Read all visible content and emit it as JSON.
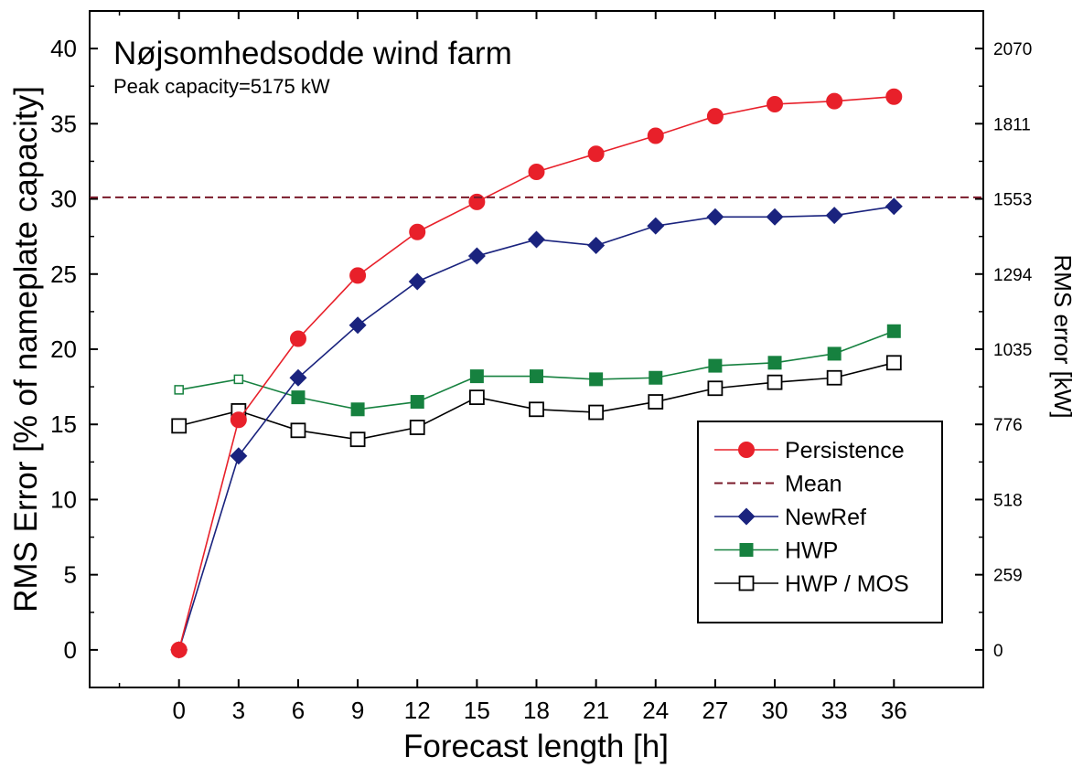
{
  "chart_data": {
    "type": "line",
    "title": "Nøjsomhedsodde wind farm",
    "subtitle": "Peak capacity=5175 kW",
    "xlabel": "Forecast length [h]",
    "ylabel": "RMS Error [% of nameplate capacity]",
    "y2label": "RMS error [kW]",
    "xlim": [
      -4.5,
      40.5
    ],
    "ylim": [
      -2.5,
      42.5
    ],
    "x_ticks": [
      0,
      3,
      6,
      9,
      12,
      15,
      18,
      21,
      24,
      27,
      30,
      33,
      36
    ],
    "y_ticks": [
      0,
      5,
      10,
      15,
      20,
      25,
      30,
      35,
      40
    ],
    "y2_ticks": [
      {
        "value": 0,
        "label": "0"
      },
      {
        "value": 5,
        "label": "259"
      },
      {
        "value": 10,
        "label": "518"
      },
      {
        "value": 15,
        "label": "776"
      },
      {
        "value": 20,
        "label": "1035"
      },
      {
        "value": 25,
        "label": "1294"
      },
      {
        "value": 30,
        "label": "1553"
      },
      {
        "value": 35,
        "label": "1811"
      },
      {
        "value": 40,
        "label": "2070"
      }
    ],
    "grid": false,
    "legend_position": "bottom-right",
    "series": [
      {
        "name": "Persistence",
        "color": "#e8202a",
        "marker": "circle",
        "x": [
          0,
          3,
          6,
          9,
          12,
          15,
          18,
          21,
          24,
          27,
          30,
          33,
          36
        ],
        "values": [
          0.0,
          15.3,
          20.7,
          24.9,
          27.8,
          29.8,
          31.8,
          33.0,
          34.2,
          35.5,
          36.3,
          36.5,
          36.8
        ]
      },
      {
        "name": "Mean",
        "color": "#7a1a2a",
        "marker": "none",
        "dashed": true,
        "x": [
          -4.5,
          40.5
        ],
        "values": [
          30.1,
          30.1
        ]
      },
      {
        "name": "NewRef",
        "color": "#1a237e",
        "marker": "diamond",
        "x": [
          0,
          3,
          6,
          9,
          12,
          15,
          18,
          21,
          24,
          27,
          30,
          33,
          36
        ],
        "values": [
          0.0,
          12.9,
          18.1,
          21.6,
          24.5,
          26.2,
          27.3,
          26.9,
          28.2,
          28.8,
          28.8,
          28.9,
          29.5
        ]
      },
      {
        "name": "HWP",
        "color": "#16813f",
        "marker": "square-filled",
        "x": [
          0,
          3,
          6,
          9,
          12,
          15,
          18,
          21,
          24,
          27,
          30,
          33,
          36
        ],
        "values": [
          17.3,
          18.0,
          16.8,
          16.0,
          16.5,
          18.2,
          18.2,
          18.0,
          18.1,
          18.9,
          19.1,
          19.7,
          21.2
        ],
        "small_marker_indices": [
          0,
          1
        ]
      },
      {
        "name": "HWP / MOS",
        "color": "#000000",
        "marker": "square-open",
        "x": [
          0,
          3,
          6,
          9,
          12,
          15,
          18,
          21,
          24,
          27,
          30,
          33,
          36
        ],
        "values": [
          14.9,
          15.9,
          14.6,
          14.0,
          14.8,
          16.8,
          16.0,
          15.8,
          16.5,
          17.4,
          17.8,
          18.1,
          19.1
        ]
      }
    ]
  }
}
